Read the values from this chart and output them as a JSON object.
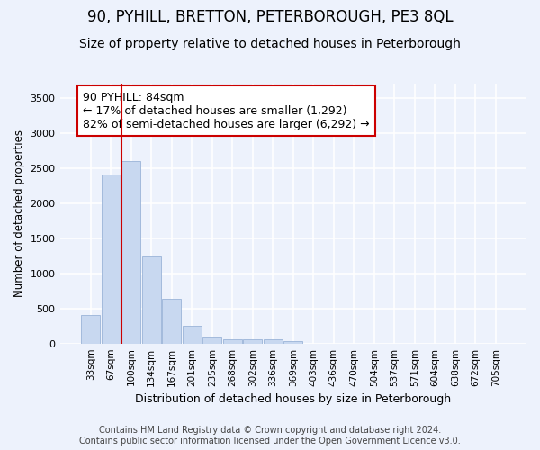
{
  "title": "90, PYHILL, BRETTON, PETERBOROUGH, PE3 8QL",
  "subtitle": "Size of property relative to detached houses in Peterborough",
  "xlabel": "Distribution of detached houses by size in Peterborough",
  "ylabel": "Number of detached properties",
  "footer_line1": "Contains HM Land Registry data © Crown copyright and database right 2024.",
  "footer_line2": "Contains public sector information licensed under the Open Government Licence v3.0.",
  "categories": [
    "33sqm",
    "67sqm",
    "100sqm",
    "134sqm",
    "167sqm",
    "201sqm",
    "235sqm",
    "268sqm",
    "302sqm",
    "336sqm",
    "369sqm",
    "403sqm",
    "436sqm",
    "470sqm",
    "504sqm",
    "537sqm",
    "571sqm",
    "604sqm",
    "638sqm",
    "672sqm",
    "705sqm"
  ],
  "values": [
    400,
    2400,
    2600,
    1250,
    640,
    250,
    100,
    55,
    55,
    55,
    40,
    0,
    0,
    0,
    0,
    0,
    0,
    0,
    0,
    0,
    0
  ],
  "bar_color": "#c8d8f0",
  "bar_edge_color": "#9ab4d8",
  "vline_x": 1.5,
  "vline_color": "#cc0000",
  "annotation_text": "90 PYHILL: 84sqm\n← 17% of detached houses are smaller (1,292)\n82% of semi-detached houses are larger (6,292) →",
  "annotation_box_color": "white",
  "annotation_box_edge_color": "#cc0000",
  "ylim": [
    0,
    3700
  ],
  "yticks": [
    0,
    500,
    1000,
    1500,
    2000,
    2500,
    3000,
    3500
  ],
  "title_fontsize": 12,
  "subtitle_fontsize": 10,
  "background_color": "#edf2fc",
  "plot_background_color": "#edf2fc",
  "grid_color": "white",
  "annotation_fontsize": 9,
  "footer_fontsize": 7
}
